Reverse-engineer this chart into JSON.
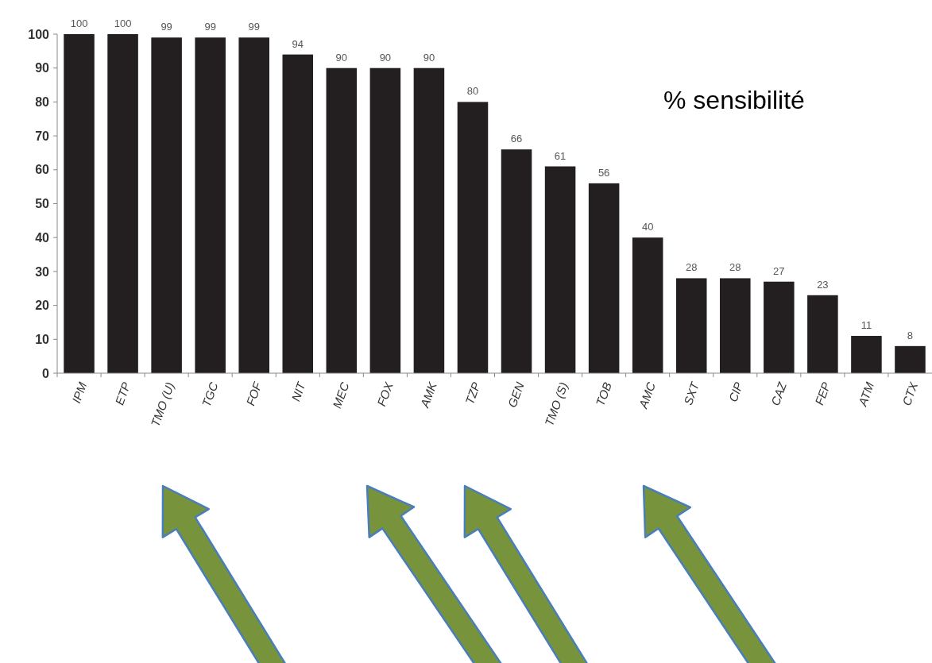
{
  "chart_data": {
    "type": "bar",
    "categories": [
      "IPM",
      "ETP",
      "TMO (U)",
      "TGC",
      "FOF",
      "NIT",
      "MEC",
      "FOX",
      "AMK",
      "TZP",
      "GEN",
      "TMO (S)",
      "TOB",
      "AMC",
      "SXT",
      "CIP",
      "CAZ",
      "FEP",
      "ATM",
      "CTX"
    ],
    "values": [
      100,
      100,
      99,
      99,
      99,
      94,
      90,
      90,
      90,
      80,
      66,
      61,
      56,
      40,
      28,
      28,
      27,
      23,
      11,
      8
    ],
    "color": "#231f20",
    "ylim": [
      0,
      100
    ],
    "yticks": [
      0,
      10,
      20,
      30,
      40,
      50,
      60,
      70,
      80,
      90,
      100
    ],
    "data_labels": true,
    "grid": false,
    "annotations": [
      "% sensibilité"
    ]
  }
}
